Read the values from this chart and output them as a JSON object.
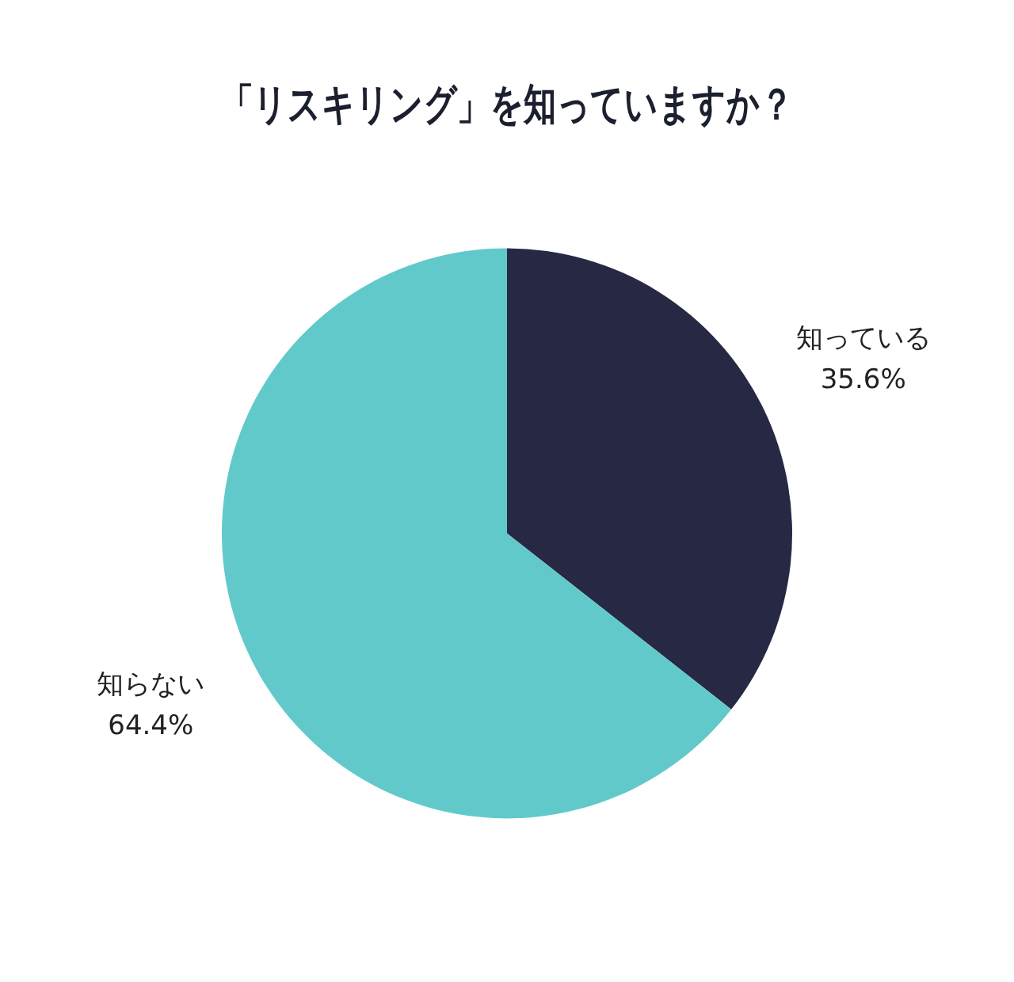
{
  "chart_data": {
    "type": "pie",
    "title": "「リスキリング」を知っていますか？",
    "categories": [
      "知っている",
      "知らない"
    ],
    "values": [
      35.6,
      64.4
    ],
    "value_labels": [
      "35.6%",
      "64.4%"
    ],
    "colors": [
      "#272844",
      "#62c9ca"
    ],
    "legend": false
  }
}
